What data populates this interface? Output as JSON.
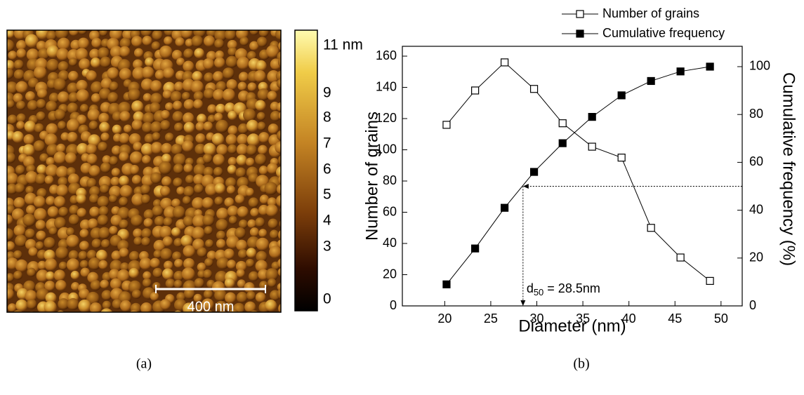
{
  "afm_image": {
    "scale_bar": "400 nm",
    "colorbar": {
      "ticks": [
        {
          "value": 11,
          "label": "11 nm"
        },
        9,
        8,
        7,
        6,
        5,
        4,
        3,
        0
      ]
    }
  },
  "panel_labels": [
    "(a)",
    "(b)"
  ],
  "chart_data": {
    "type": "line",
    "x_label": "Diameter (nm)",
    "y_label": "Number of grains",
    "y2_label": "Cumulative frequency (%)",
    "x": [
      20.2,
      23.3,
      26.5,
      29.7,
      32.8,
      36.0,
      39.2,
      42.4,
      45.6,
      48.8
    ],
    "series": [
      {
        "name": "Number of grains",
        "color": "#000000",
        "marker": "open-square",
        "values": [
          116,
          138,
          156,
          139,
          117,
          102,
          95,
          50,
          31,
          16
        ]
      },
      {
        "name": "Cumulative frequency",
        "color": "#000000",
        "marker": "filled-square",
        "axis": "y2",
        "values": [
          9,
          24,
          41,
          56,
          68,
          79,
          88,
          94,
          98,
          100
        ]
      }
    ],
    "xlim": [
      15.4,
      52.3
    ],
    "xticks": [
      20,
      25,
      30,
      35,
      40,
      45,
      50
    ],
    "ylim": [
      0,
      166.3
    ],
    "yticks": [
      0,
      20,
      40,
      60,
      80,
      100,
      120,
      140,
      160
    ],
    "y2lim": [
      0,
      108.5
    ],
    "y2ticks": [
      0,
      20,
      40,
      60,
      80,
      100
    ],
    "legend": "top",
    "reference": {
      "x": 28.5,
      "y": 50,
      "symbol": "d",
      "subscript": "50",
      "text": " = 28.5nm"
    }
  }
}
